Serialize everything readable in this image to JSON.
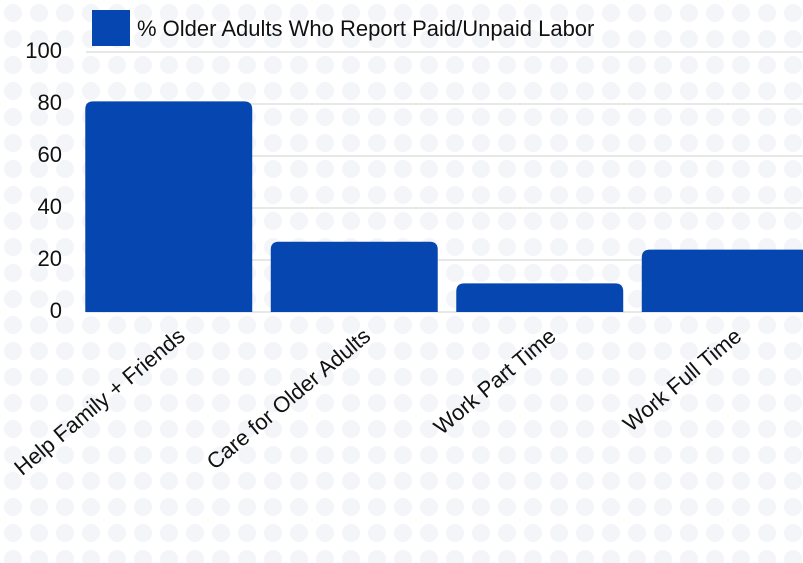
{
  "chart_data": {
    "type": "bar",
    "series": [
      {
        "name": "% Older Adults Who Report Paid/Unpaid Labor",
        "color": "#0546b0",
        "values": [
          81,
          27,
          11,
          24
        ]
      }
    ],
    "categories": [
      "Help Family + Friends",
      "Care for Older Adults",
      "Work Part Time",
      "Work Full Time"
    ],
    "ylim": [
      0,
      100
    ],
    "yticks": [
      0,
      20,
      40,
      60,
      80,
      100
    ],
    "grid": true,
    "legend": "top"
  }
}
